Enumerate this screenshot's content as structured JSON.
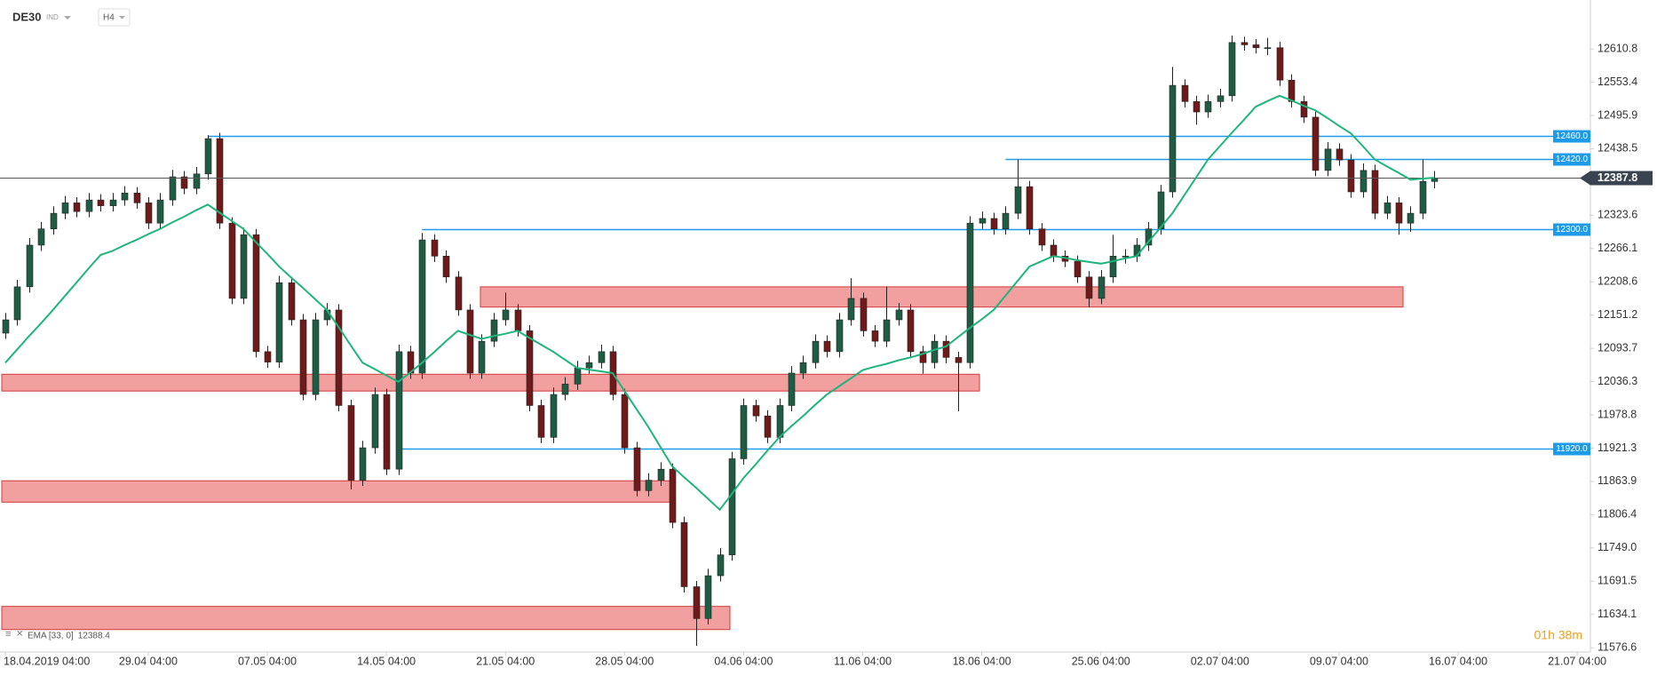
{
  "chart_data": {
    "type": "candlestick",
    "symbol": "DE30",
    "instrument_type": "IND",
    "interval": "H4",
    "indicator_label": "EMA [33, 0]",
    "timer": "01h 38m",
    "up_color": "#1f5c44",
    "down_color": "#6e1a1a",
    "ema_color": "#1fb47c",
    "level_color": "#1e9be8",
    "zone_color": "#f09a9a",
    "ylim": [
      11560,
      12700
    ],
    "yticks": [
      12610.8,
      12553.4,
      12495.9,
      12438.5,
      12323.6,
      12266.1,
      12208.6,
      12151.2,
      12093.7,
      12036.3,
      11978.8,
      11921.3,
      11863.9,
      11806.4,
      {
        "value": 11749,
        "label": "11749.0"
      },
      11691.5,
      11634.1,
      11576.6
    ],
    "xticks": [
      {
        "value": 0,
        "label": "18.04.2019  04:00"
      },
      {
        "value": 12,
        "label": "29.04  04:00"
      },
      {
        "value": 22,
        "label": "07.05  04:00"
      },
      {
        "value": 32,
        "label": "14.05  04:00"
      },
      {
        "value": 42,
        "label": "21.05  04:00"
      },
      {
        "value": 52,
        "label": "28.05  04:00"
      },
      {
        "value": 62,
        "label": "04.06  04:00"
      },
      {
        "value": 72,
        "label": "11.06  04:00"
      },
      {
        "value": 82,
        "label": "18.06  04:00"
      },
      {
        "value": 92,
        "label": "25.06  04:00"
      },
      {
        "value": 102,
        "label": "02.07  04:00"
      },
      {
        "value": 112,
        "label": "09.07  04:00"
      },
      {
        "value": 122,
        "label": "16.07  04:00"
      },
      {
        "value": 132,
        "label": "21.07  04:00"
      }
    ],
    "levels": [
      {
        "value": 12460,
        "label": "12460.0"
      },
      {
        "value": 12420,
        "label": "12420.0"
      },
      {
        "value": 12300,
        "label": "12300.0"
      },
      {
        "value": 11920,
        "label": "11920.0"
      }
    ],
    "zones": [
      {
        "low": 12165,
        "high": 12200
      },
      {
        "low": 12020,
        "high": 12049
      },
      {
        "low": 11828,
        "high": 11865
      },
      {
        "low": 11608,
        "high": 11648
      }
    ],
    "candles": [
      [
        12120,
        12155,
        12110,
        12143
      ],
      [
        12143,
        12212,
        12133,
        12200
      ],
      [
        12200,
        12284,
        12190,
        12272
      ],
      [
        12272,
        12312,
        12262,
        12300
      ],
      [
        12300,
        12339,
        12290,
        12327
      ],
      [
        12327,
        12357,
        12317,
        12345
      ],
      [
        12345,
        12355,
        12320,
        12330
      ],
      [
        12330,
        12362,
        12320,
        12350
      ],
      [
        12350,
        12360,
        12330,
        12340
      ],
      [
        12340,
        12362,
        12330,
        12350
      ],
      [
        12350,
        12374,
        12340,
        12362
      ],
      [
        12362,
        12372,
        12335,
        12345
      ],
      [
        12345,
        12355,
        12300,
        12310
      ],
      [
        12310,
        12362,
        12300,
        12350
      ],
      [
        12350,
        12402,
        12340,
        12390
      ],
      [
        12390,
        12400,
        12360,
        12370
      ],
      [
        12370,
        12407,
        12360,
        12395
      ],
      [
        12395,
        12462,
        12385,
        12456
      ],
      [
        12456,
        12466,
        12300,
        12310
      ],
      [
        12310,
        12320,
        12170,
        12180
      ],
      [
        12180,
        12302,
        12170,
        12290
      ],
      [
        12290,
        12300,
        12078,
        12088
      ],
      [
        12088,
        12098,
        12060,
        12070
      ],
      [
        12070,
        12219,
        12060,
        12207
      ],
      [
        12207,
        12217,
        12133,
        12143
      ],
      [
        12143,
        12153,
        12004,
        12014
      ],
      [
        12014,
        12155,
        12004,
        12143
      ],
      [
        12143,
        12172,
        12133,
        12160
      ],
      [
        12160,
        12170,
        11985,
        11995
      ],
      [
        11995,
        12005,
        11850,
        11866
      ],
      [
        11866,
        11934,
        11856,
        11922
      ],
      [
        11922,
        12026,
        11912,
        12014
      ],
      [
        12014,
        12024,
        11875,
        11885
      ],
      [
        11885,
        12100,
        11875,
        12088
      ],
      [
        12088,
        12098,
        12041,
        12051
      ],
      [
        12051,
        12293,
        12041,
        12281
      ],
      [
        12281,
        12291,
        12243,
        12253
      ],
      [
        12253,
        12263,
        12207,
        12217
      ],
      [
        12217,
        12227,
        12150,
        12160
      ],
      [
        12160,
        12170,
        12041,
        12051
      ],
      [
        12051,
        12118,
        12041,
        12106
      ],
      [
        12106,
        12155,
        12096,
        12143
      ],
      [
        12143,
        12190,
        12133,
        12160
      ],
      [
        12160,
        12170,
        12114,
        12124
      ],
      [
        12124,
        12134,
        11985,
        11995
      ],
      [
        11995,
        12005,
        11930,
        11940
      ],
      [
        11940,
        12026,
        11930,
        12014
      ],
      [
        12014,
        12044,
        12004,
        12032
      ],
      [
        12032,
        12072,
        12022,
        12060
      ],
      [
        12060,
        12081,
        12050,
        12069
      ],
      [
        12069,
        12100,
        12059,
        12088
      ],
      [
        12088,
        12098,
        12004,
        12014
      ],
      [
        12014,
        12024,
        11912,
        11922
      ],
      [
        11922,
        11932,
        11838,
        11848
      ],
      [
        11848,
        11878,
        11838,
        11866
      ],
      [
        11866,
        11897,
        11856,
        11885
      ],
      [
        11885,
        11895,
        11783,
        11793
      ],
      [
        11793,
        11803,
        11672,
        11682
      ],
      [
        11682,
        11692,
        11580,
        11627
      ],
      [
        11627,
        11713,
        11617,
        11701
      ],
      [
        11701,
        11749,
        11691,
        11737
      ],
      [
        11737,
        11915,
        11727,
        11903
      ],
      [
        11903,
        12007,
        11893,
        11995
      ],
      [
        11995,
        12005,
        11967,
        11977
      ],
      [
        11977,
        11987,
        11930,
        11940
      ],
      [
        11940,
        12007,
        11930,
        11995
      ],
      [
        11995,
        12063,
        11985,
        12051
      ],
      [
        12051,
        12081,
        12041,
        12069
      ],
      [
        12069,
        12118,
        12059,
        12106
      ],
      [
        12106,
        12116,
        12078,
        12088
      ],
      [
        12088,
        12155,
        12078,
        12143
      ],
      [
        12143,
        12215,
        12133,
        12180
      ],
      [
        12180,
        12190,
        12114,
        12124
      ],
      [
        12124,
        12134,
        12096,
        12106
      ],
      [
        12106,
        12200,
        12096,
        12143
      ],
      [
        12143,
        12172,
        12133,
        12160
      ],
      [
        12160,
        12170,
        12078,
        12088
      ],
      [
        12088,
        12098,
        12050,
        12069
      ],
      [
        12069,
        12118,
        12059,
        12106
      ],
      [
        12106,
        12116,
        12068,
        12078
      ],
      [
        12078,
        12088,
        11985,
        12069
      ],
      [
        12069,
        12322,
        12059,
        12310
      ],
      [
        12310,
        12330,
        12300,
        12318
      ],
      [
        12318,
        12328,
        12290,
        12300
      ],
      [
        12300,
        12339,
        12290,
        12327
      ],
      [
        12327,
        12420,
        12317,
        12373
      ],
      [
        12373,
        12383,
        12290,
        12300
      ],
      [
        12300,
        12310,
        12262,
        12272
      ],
      [
        12272,
        12282,
        12243,
        12253
      ],
      [
        12253,
        12263,
        12234,
        12244
      ],
      [
        12244,
        12254,
        12207,
        12217
      ],
      [
        12217,
        12227,
        12165,
        12180
      ],
      [
        12180,
        12229,
        12170,
        12217
      ],
      [
        12217,
        12290,
        12207,
        12253
      ],
      [
        12253,
        12265,
        12240,
        12253
      ],
      [
        12253,
        12284,
        12243,
        12272
      ],
      [
        12272,
        12312,
        12262,
        12300
      ],
      [
        12300,
        12376,
        12290,
        12364
      ],
      [
        12364,
        12580,
        12354,
        12548
      ],
      [
        12548,
        12558,
        12510,
        12520
      ],
      [
        12520,
        12530,
        12480,
        12502
      ],
      [
        12502,
        12532,
        12492,
        12520
      ],
      [
        12520,
        12542,
        12510,
        12530
      ],
      [
        12530,
        12634,
        12520,
        12622
      ],
      [
        12622,
        12632,
        12608,
        12618
      ],
      [
        12618,
        12628,
        12603,
        12613
      ],
      [
        12613,
        12630,
        12600,
        12613
      ],
      [
        12613,
        12623,
        12547,
        12557
      ],
      [
        12557,
        12567,
        12510,
        12520
      ],
      [
        12520,
        12530,
        12483,
        12493
      ],
      [
        12493,
        12503,
        12391,
        12401
      ],
      [
        12401,
        12450,
        12391,
        12438
      ],
      [
        12438,
        12448,
        12409,
        12419
      ],
      [
        12419,
        12429,
        12354,
        12364
      ],
      [
        12364,
        12413,
        12354,
        12401
      ],
      [
        12401,
        12411,
        12317,
        12327
      ],
      [
        12327,
        12357,
        12317,
        12345
      ],
      [
        12345,
        12355,
        12290,
        12310
      ],
      [
        12310,
        12339,
        12295,
        12327
      ],
      [
        12327,
        12420,
        12317,
        12382
      ],
      [
        12382,
        12400,
        12370,
        12387.8
      ]
    ],
    "ema": [
      12069,
      12092,
      12115,
      12137,
      12160,
      12184,
      12208,
      12232,
      12255,
      12262,
      12272,
      12281,
      12291,
      12300,
      12311,
      12321,
      12332,
      12342,
      12328,
      12314,
      12300,
      12278,
      12257,
      12235,
      12216,
      12198,
      12179,
      12160,
      12130,
      12099,
      12069,
      12058,
      12047,
      12036,
      12052,
      12069,
      12087,
      12106,
      12124,
      12117,
      12110,
      12115,
      12119,
      12124,
      12112,
      12100,
      12088,
      12074,
      12060,
      12057,
      12054,
      12051,
      12020,
      11989,
      11958,
      11924,
      11890,
      11871,
      11853,
      11834,
      11815,
      11842,
      11870,
      11893,
      11917,
      11940,
      11959,
      11977,
      11996,
      12014,
      12028,
      12042,
      12056,
      12062,
      12067,
      12073,
      12078,
      12084,
      12091,
      12097,
      12113,
      12129,
      12144,
      12160,
      12185,
      12210,
      12235,
      12244,
      12253,
      12250,
      12246,
      12243,
      12240,
      12244,
      12249,
      12253,
      12278,
      12302,
      12327,
      12358,
      12389,
      12420,
      12443,
      12466,
      12488,
      12511,
      12521,
      12530,
      12522,
      12513,
      12505,
      12492,
      12478,
      12465,
      12443,
      12420,
      12408,
      12397,
      12385,
      12387,
      12388.4
    ]
  }
}
